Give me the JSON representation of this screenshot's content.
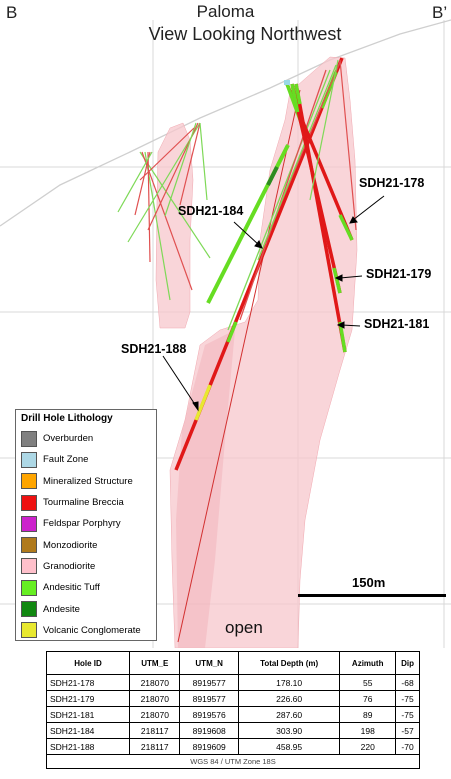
{
  "header": {
    "left_label": "B",
    "right_label": "B’",
    "project": "Paloma",
    "view": "View Looking Northwest"
  },
  "hole_labels": {
    "h178": "SDH21-178",
    "h179": "SDH21-179",
    "h181": "SDH21-181",
    "h184": "SDH21-184",
    "h188": "SDH21-188"
  },
  "open_label": "open",
  "scale": {
    "label": "150m"
  },
  "legend": {
    "title": "Drill Hole Lithology",
    "items": [
      {
        "label": "Overburden",
        "color": "#808080"
      },
      {
        "label": "Fault Zone",
        "color": "#add8e6"
      },
      {
        "label": "Mineralized Structure",
        "color": "#ffa500"
      },
      {
        "label": "Tourmaline Breccia",
        "color": "#ee1111"
      },
      {
        "label": "Feldspar Porphyry",
        "color": "#cc22cc"
      },
      {
        "label": "Monzodiorite",
        "color": "#b07a1c"
      },
      {
        "label": "Granodiorite",
        "color": "#ffc0cb"
      },
      {
        "label": "Andesitic Tuff",
        "color": "#66ee22"
      },
      {
        "label": "Andesite",
        "color": "#118811"
      },
      {
        "label": "Volcanic Conglomerate",
        "color": "#e8e830"
      }
    ]
  },
  "table": {
    "headers": [
      "Hole ID",
      "UTM_E",
      "UTM_N",
      "Total Depth (m)",
      "Azimuth",
      "Dip"
    ],
    "rows": [
      [
        "SDH21-178",
        "218070",
        "8919577",
        "178.10",
        "55",
        "-68"
      ],
      [
        "SDH21-179",
        "218070",
        "8919577",
        "226.60",
        "76",
        "-75"
      ],
      [
        "SDH21-181",
        "218070",
        "8919576",
        "287.60",
        "89",
        "-75"
      ],
      [
        "SDH21-184",
        "218117",
        "8919608",
        "303.90",
        "198",
        "-57"
      ],
      [
        "SDH21-188",
        "218117",
        "8919609",
        "458.95",
        "220",
        "-70"
      ]
    ],
    "footer": "WGS 84 / UTM Zone 18S"
  }
}
